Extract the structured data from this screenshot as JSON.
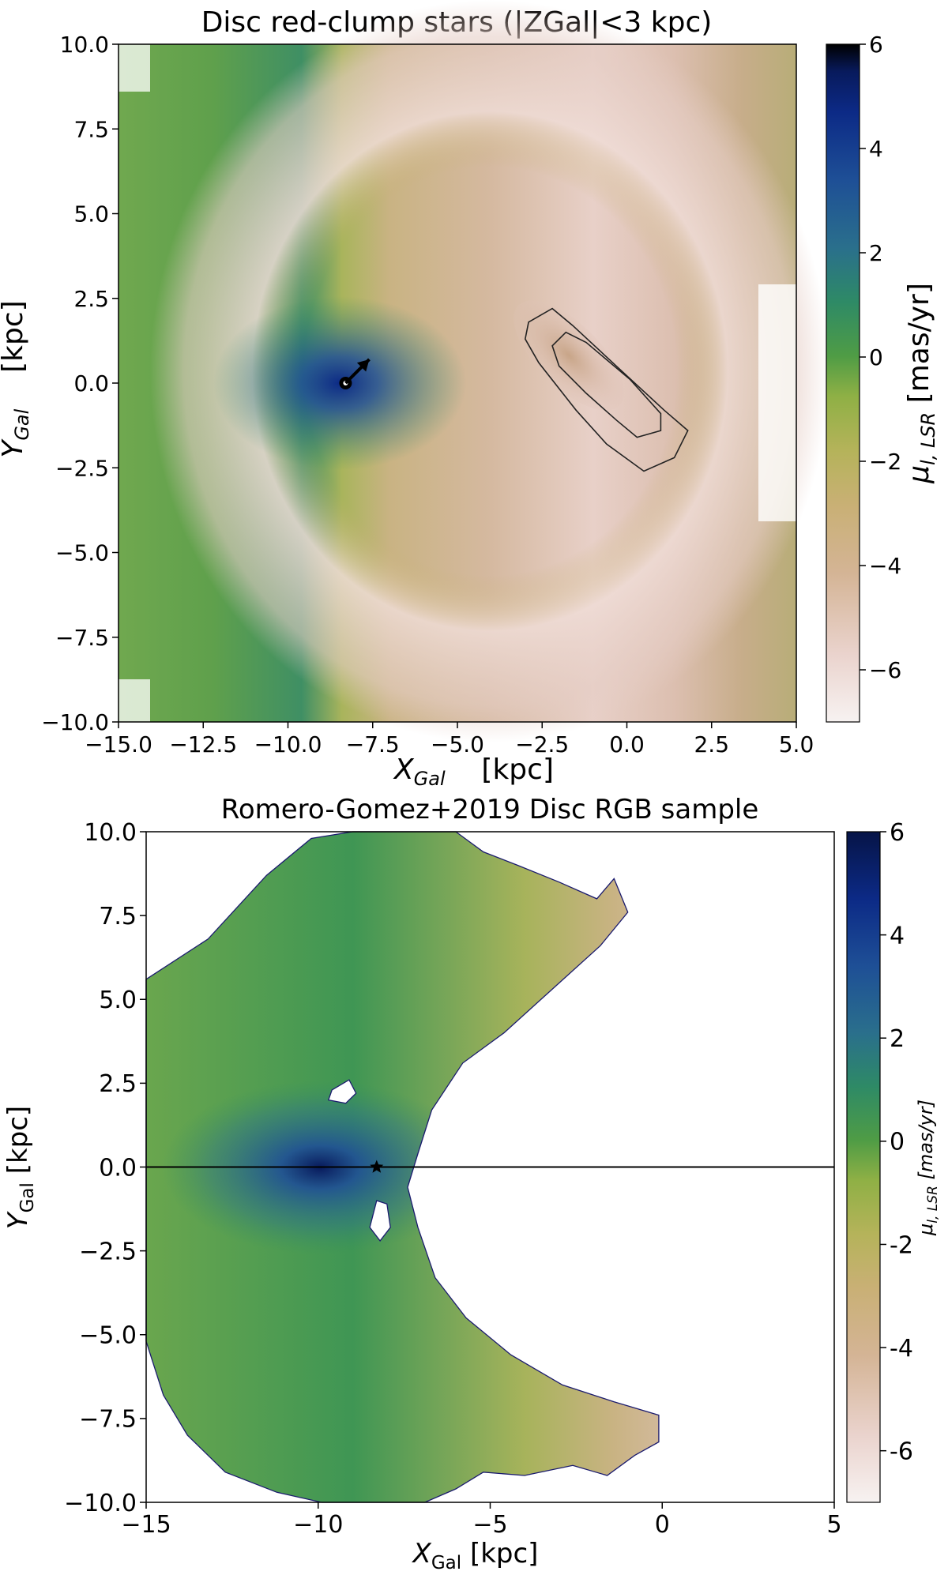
{
  "chart_data": [
    {
      "type": "heatmap",
      "title": "Disc red-clump stars (|ZGal|<3 kpc)",
      "xlabel": {
        "symbol": "X",
        "sub": "Gal",
        "unit": "    [kpc]"
      },
      "ylabel": {
        "symbol": "Y",
        "sub": "Gal",
        "unit": "    [kpc]"
      },
      "xlim": [
        -15.0,
        5.0
      ],
      "ylim": [
        -10.0,
        10.0
      ],
      "xticks": [
        -15.0,
        -12.5,
        -10.0,
        -7.5,
        -5.0,
        -2.5,
        0.0,
        2.5,
        5.0
      ],
      "xtick_labels": [
        "−15.0",
        "−12.5",
        "−10.0",
        "−7.5",
        "−5.0",
        "−2.5",
        "0.0",
        "2.5",
        "5.0"
      ],
      "yticks": [
        -10.0,
        -7.5,
        -5.0,
        -2.5,
        0.0,
        2.5,
        5.0,
        7.5,
        10.0
      ],
      "ytick_labels": [
        "−10.0",
        "−7.5",
        "−5.0",
        "−2.5",
        "0.0",
        "2.5",
        "5.0",
        "7.5",
        "10.0"
      ],
      "colorbar": {
        "label": {
          "symbol": "μ",
          "sub": "l, LSR",
          "unit": " [mas/yr]"
        },
        "range": [
          -7,
          6
        ],
        "ticks": [
          -6,
          -4,
          -2,
          0,
          2,
          4,
          6
        ],
        "tick_labels": [
          "−6",
          "−4",
          "−2",
          "0",
          "2",
          "4",
          "6"
        ]
      },
      "markers": [
        {
          "type": "sun",
          "x": -8.3,
          "y": 0.0
        },
        {
          "type": "arrow",
          "x": -8.3,
          "y": 0.0,
          "dx": 0.7,
          "dy": 0.7
        }
      ],
      "contours": [
        {
          "name": "bar-outer",
          "points": [
            [
              -2.9,
              1.8
            ],
            [
              -2.2,
              2.2
            ],
            [
              -1.6,
              1.7
            ],
            [
              -0.2,
              0.4
            ],
            [
              1.1,
              -0.8
            ],
            [
              1.8,
              -1.4
            ],
            [
              1.4,
              -2.2
            ],
            [
              0.5,
              -2.6
            ],
            [
              -0.6,
              -1.8
            ],
            [
              -1.5,
              -0.8
            ],
            [
              -2.6,
              0.6
            ],
            [
              -3.0,
              1.3
            ]
          ]
        },
        {
          "name": "bar-inner",
          "points": [
            [
              -2.2,
              1.1
            ],
            [
              -1.8,
              1.5
            ],
            [
              -1.2,
              1.2
            ],
            [
              0.1,
              0.1
            ],
            [
              1.0,
              -0.9
            ],
            [
              1.0,
              -1.4
            ],
            [
              0.3,
              -1.6
            ],
            [
              -0.3,
              -1.1
            ],
            [
              -1.2,
              -0.3
            ],
            [
              -2.0,
              0.5
            ]
          ]
        }
      ]
    },
    {
      "type": "heatmap",
      "title": "Romero-Gomez+2019 Disc RGB sample",
      "xlabel": {
        "symbol": "X",
        "sub": "Gal",
        "unit": " [kpc]"
      },
      "ylabel": {
        "symbol": "Y",
        "sub": "Gal",
        "unit": " [kpc]"
      },
      "xlim": [
        -15,
        5
      ],
      "ylim": [
        -10.0,
        10.0
      ],
      "xticks": [
        -15,
        -10,
        -5,
        0,
        5
      ],
      "xtick_labels": [
        "−15",
        "−10",
        "−5",
        "0",
        "5"
      ],
      "yticks": [
        -10.0,
        -7.5,
        -5.0,
        -2.5,
        0.0,
        2.5,
        5.0,
        7.5,
        10.0
      ],
      "ytick_labels": [
        "−10.0",
        "−7.5",
        "−5.0",
        "−2.5",
        "0.0",
        "2.5",
        "5.0",
        "7.5",
        "10.0"
      ],
      "colorbar": {
        "label": {
          "symbol": "μ",
          "sub": "l, LSR",
          "unit": " [mas/yr]"
        },
        "range": [
          -7,
          6
        ],
        "ticks": [
          -6,
          -4,
          -2,
          0,
          2,
          4,
          6
        ],
        "tick_labels": [
          "-6",
          "-4",
          "-2",
          "0",
          "2",
          "4",
          "6"
        ]
      },
      "markers": [
        {
          "type": "star",
          "x": -8.3,
          "y": 0.0
        },
        {
          "type": "hline",
          "y": 0.0
        }
      ],
      "data_region": [
        [
          -15.0,
          5.6
        ],
        [
          -13.2,
          6.8
        ],
        [
          -11.5,
          8.7
        ],
        [
          -10.2,
          9.8
        ],
        [
          -9.0,
          10.0
        ],
        [
          -6.0,
          10.0
        ],
        [
          -5.2,
          9.4
        ],
        [
          -4.2,
          9.0
        ],
        [
          -3.0,
          8.5
        ],
        [
          -1.9,
          8.0
        ],
        [
          -1.4,
          8.6
        ],
        [
          -1.0,
          7.6
        ],
        [
          -1.8,
          6.6
        ],
        [
          -3.2,
          5.3
        ],
        [
          -4.6,
          4.0
        ],
        [
          -5.8,
          3.1
        ],
        [
          -6.7,
          1.7
        ],
        [
          -7.1,
          0.4
        ],
        [
          -7.4,
          -0.6
        ],
        [
          -7.1,
          -1.8
        ],
        [
          -6.6,
          -3.3
        ],
        [
          -5.7,
          -4.5
        ],
        [
          -4.4,
          -5.6
        ],
        [
          -2.9,
          -6.5
        ],
        [
          -1.4,
          -7.0
        ],
        [
          -0.1,
          -7.4
        ],
        [
          -0.1,
          -8.2
        ],
        [
          -0.8,
          -8.6
        ],
        [
          -1.6,
          -9.2
        ],
        [
          -2.6,
          -8.9
        ],
        [
          -4.0,
          -9.2
        ],
        [
          -5.2,
          -9.1
        ],
        [
          -6.0,
          -9.6
        ],
        [
          -6.9,
          -10.0
        ],
        [
          -9.9,
          -10.0
        ],
        [
          -11.2,
          -9.7
        ],
        [
          -12.7,
          -9.1
        ],
        [
          -13.8,
          -8.0
        ],
        [
          -14.5,
          -6.8
        ],
        [
          -15.0,
          -5.2
        ]
      ],
      "holes": [
        [
          [
            -9.6,
            2.3
          ],
          [
            -9.1,
            2.6
          ],
          [
            -8.9,
            2.2
          ],
          [
            -9.2,
            1.9
          ],
          [
            -9.7,
            2.0
          ]
        ],
        [
          [
            -8.3,
            -1.0
          ],
          [
            -8.0,
            -1.1
          ],
          [
            -7.9,
            -1.8
          ],
          [
            -8.2,
            -2.2
          ],
          [
            -8.5,
            -1.8
          ]
        ]
      ]
    }
  ]
}
